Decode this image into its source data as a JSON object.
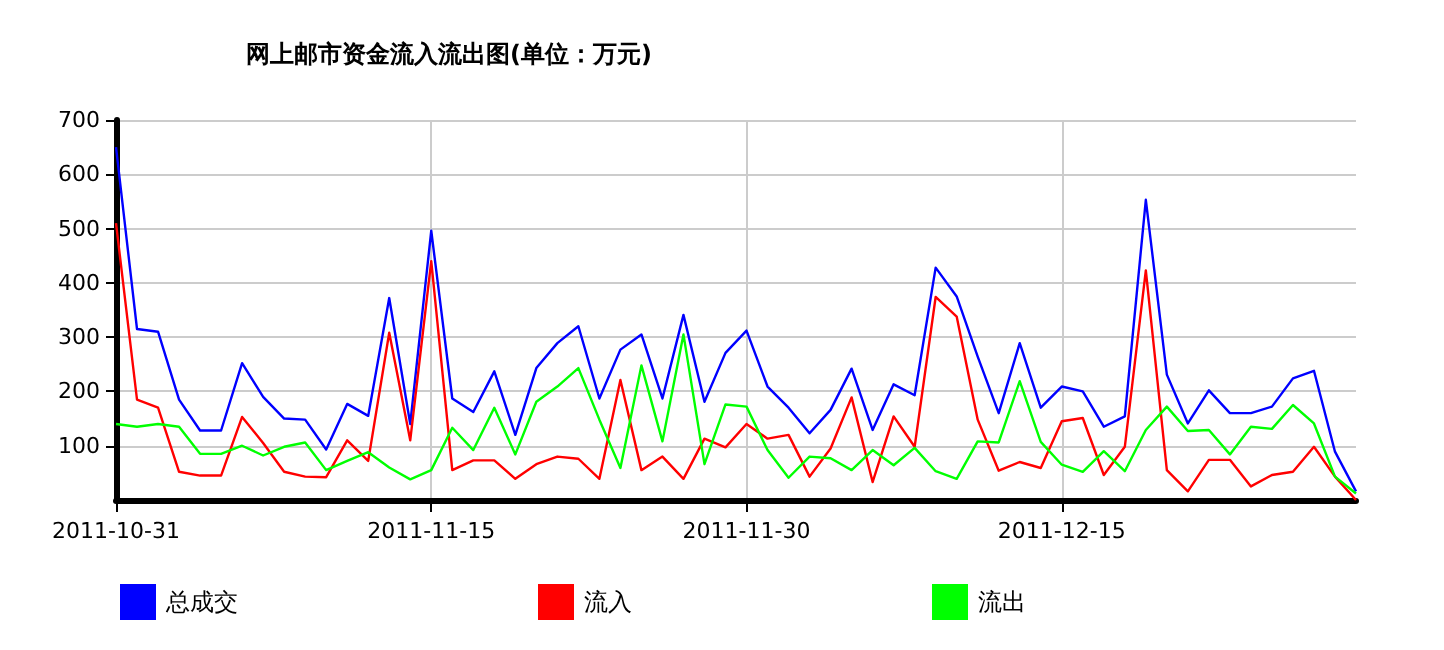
{
  "chart_data": {
    "type": "line",
    "title": "网上邮市资金流入流出图(单位：万元)",
    "x": [
      "2011-10-31",
      "2011-11-01",
      "2011-11-02",
      "2011-11-03",
      "2011-11-04",
      "2011-11-05",
      "2011-11-06",
      "2011-11-07",
      "2011-11-08",
      "2011-11-09",
      "2011-11-10",
      "2011-11-11",
      "2011-11-12",
      "2011-11-13",
      "2011-11-14",
      "2011-11-15",
      "2011-11-16",
      "2011-11-17",
      "2011-11-18",
      "2011-11-19",
      "2011-11-20",
      "2011-11-21",
      "2011-11-22",
      "2011-11-23",
      "2011-11-24",
      "2011-11-25",
      "2011-11-26",
      "2011-11-27",
      "2011-11-28",
      "2011-11-29",
      "2011-11-30",
      "2011-12-01",
      "2011-12-02",
      "2011-12-03",
      "2011-12-04",
      "2011-12-05",
      "2011-12-06",
      "2011-12-07",
      "2011-12-08",
      "2011-12-09",
      "2011-12-10",
      "2011-12-11",
      "2011-12-12",
      "2011-12-13",
      "2011-12-14",
      "2011-12-15",
      "2011-12-16",
      "2011-12-17",
      "2011-12-18",
      "2011-12-19",
      "2011-12-20",
      "2011-12-21",
      "2011-12-22",
      "2011-12-23",
      "2011-12-24",
      "2011-12-25",
      "2011-12-26",
      "2011-12-27",
      "2011-12-28",
      "2011-12-29"
    ],
    "series": [
      {
        "name": "总成交",
        "color": "#0000ff",
        "values": [
          650,
          315,
          310,
          185,
          128,
          128,
          252,
          190,
          150,
          148,
          93,
          177,
          155,
          372,
          140,
          496,
          187,
          162,
          237,
          120,
          243,
          289,
          320,
          187,
          277,
          305,
          187,
          341,
          181,
          271,
          312,
          209,
          170,
          123,
          166,
          242,
          129,
          213,
          193,
          428,
          375,
          264,
          160,
          289,
          170,
          209,
          200,
          135,
          154,
          553,
          231,
          141,
          202,
          160,
          160,
          172,
          224,
          238,
          89,
          16
        ]
      },
      {
        "name": "流入",
        "color": "#ff0000",
        "values": [
          510,
          185,
          170,
          52,
          45,
          45,
          153,
          105,
          52,
          43,
          42,
          110,
          72,
          308,
          110,
          440,
          55,
          73,
          73,
          39,
          66,
          80,
          76,
          39,
          221,
          55,
          80,
          39,
          113,
          97,
          140,
          113,
          120,
          43,
          95,
          189,
          33,
          154,
          98,
          374,
          338,
          148,
          54,
          70,
          59,
          145,
          151,
          46,
          98,
          423,
          55,
          16,
          74,
          74,
          25,
          46,
          52,
          98,
          43,
          0
        ]
      },
      {
        "name": "流出",
        "color": "#00ff00",
        "values": [
          140,
          135,
          140,
          135,
          85,
          85,
          100,
          82,
          98,
          106,
          55,
          72,
          88,
          60,
          38,
          55,
          133,
          92,
          170,
          84,
          181,
          209,
          243,
          148,
          59,
          248,
          108,
          305,
          66,
          176,
          172,
          92,
          41,
          80,
          77,
          55,
          92,
          64,
          96,
          53,
          39,
          108,
          106,
          219,
          107,
          65,
          52,
          90,
          53,
          129,
          172,
          127,
          129,
          84,
          135,
          131,
          175,
          141,
          43,
          12
        ]
      }
    ],
    "xlim": [
      "2011-10-31",
      "2011-12-29"
    ],
    "xticks": [
      "2011-10-31",
      "2011-11-15",
      "2011-11-30",
      "2011-12-15"
    ],
    "ylim": [
      0,
      700
    ],
    "yticks": [
      100,
      200,
      300,
      400,
      500,
      600,
      700
    ],
    "grid": true,
    "legend": "bottom left",
    "marker": "none",
    "line_style": "solid"
  }
}
